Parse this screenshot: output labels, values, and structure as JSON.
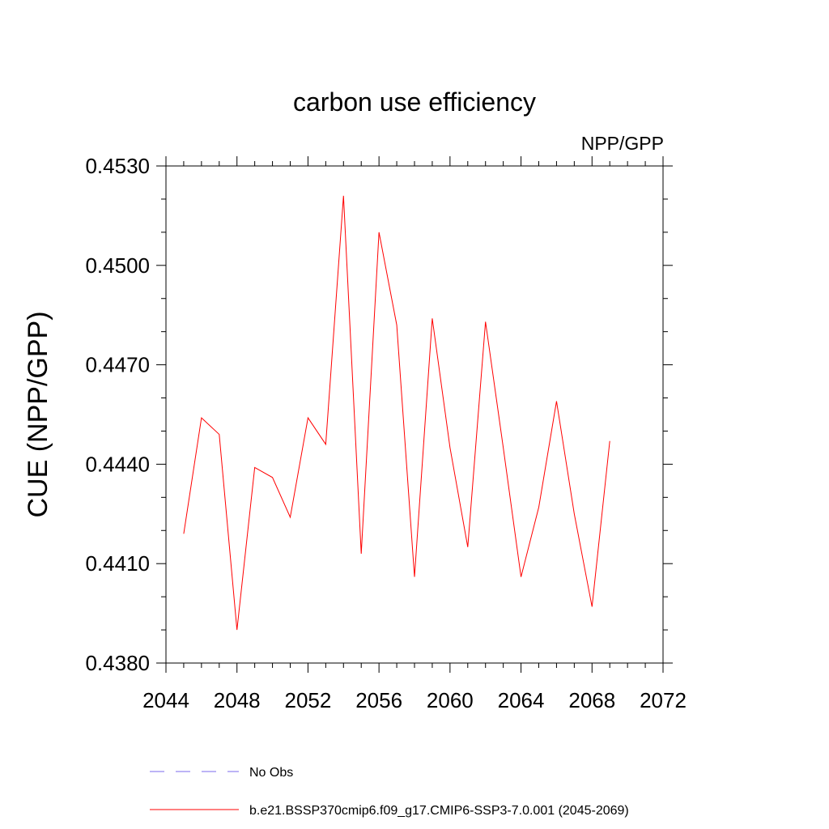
{
  "chart_data": {
    "type": "line",
    "title": "carbon use efficiency",
    "subtitle_right": "NPP/GPP",
    "ylabel": "CUE  (NPP/GPP)",
    "xlabel": "",
    "xlim": [
      2044,
      2072
    ],
    "ylim": [
      0.438,
      0.453
    ],
    "xticks": [
      2044,
      2048,
      2052,
      2056,
      2060,
      2064,
      2068,
      2072
    ],
    "xtick_labels": [
      "2044",
      "2048",
      "2052",
      "2056",
      "2060",
      "2064",
      "2068",
      "2072"
    ],
    "yticks": [
      0.438,
      0.441,
      0.444,
      0.447,
      0.45,
      0.453
    ],
    "ytick_labels": [
      "0.4380",
      "0.4410",
      "0.4440",
      "0.4470",
      "0.4500",
      "0.4530"
    ],
    "x": [
      2045,
      2046,
      2047,
      2048,
      2049,
      2050,
      2051,
      2052,
      2053,
      2054,
      2055,
      2056,
      2057,
      2058,
      2059,
      2060,
      2061,
      2062,
      2063,
      2064,
      2065,
      2066,
      2067,
      2068,
      2069
    ],
    "series": [
      {
        "name": "b.e21.BSSP370cmip6.f09_g17.CMIP6-SSP3-7.0.001 (2045-2069)",
        "color": "#ff0000",
        "dash": "solid",
        "values": [
          0.4419,
          0.4454,
          0.4449,
          0.439,
          0.4439,
          0.4436,
          0.4424,
          0.4454,
          0.4446,
          0.4521,
          0.4413,
          0.451,
          0.4482,
          0.4406,
          0.4484,
          0.4445,
          0.4415,
          0.4483,
          0.4445,
          0.4406,
          0.4427,
          0.4459,
          0.4425,
          0.4397,
          0.4447
        ]
      }
    ],
    "legend": {
      "placement": "bottom",
      "entries": [
        {
          "label": "No Obs",
          "color": "#7b68ee",
          "dash": "dashed"
        },
        {
          "label": "b.e21.BSSP370cmip6.f09_g17.CMIP6-SSP3-7.0.001 (2045-2069)",
          "color": "#ff0000",
          "dash": "solid"
        }
      ]
    },
    "grid": false
  }
}
